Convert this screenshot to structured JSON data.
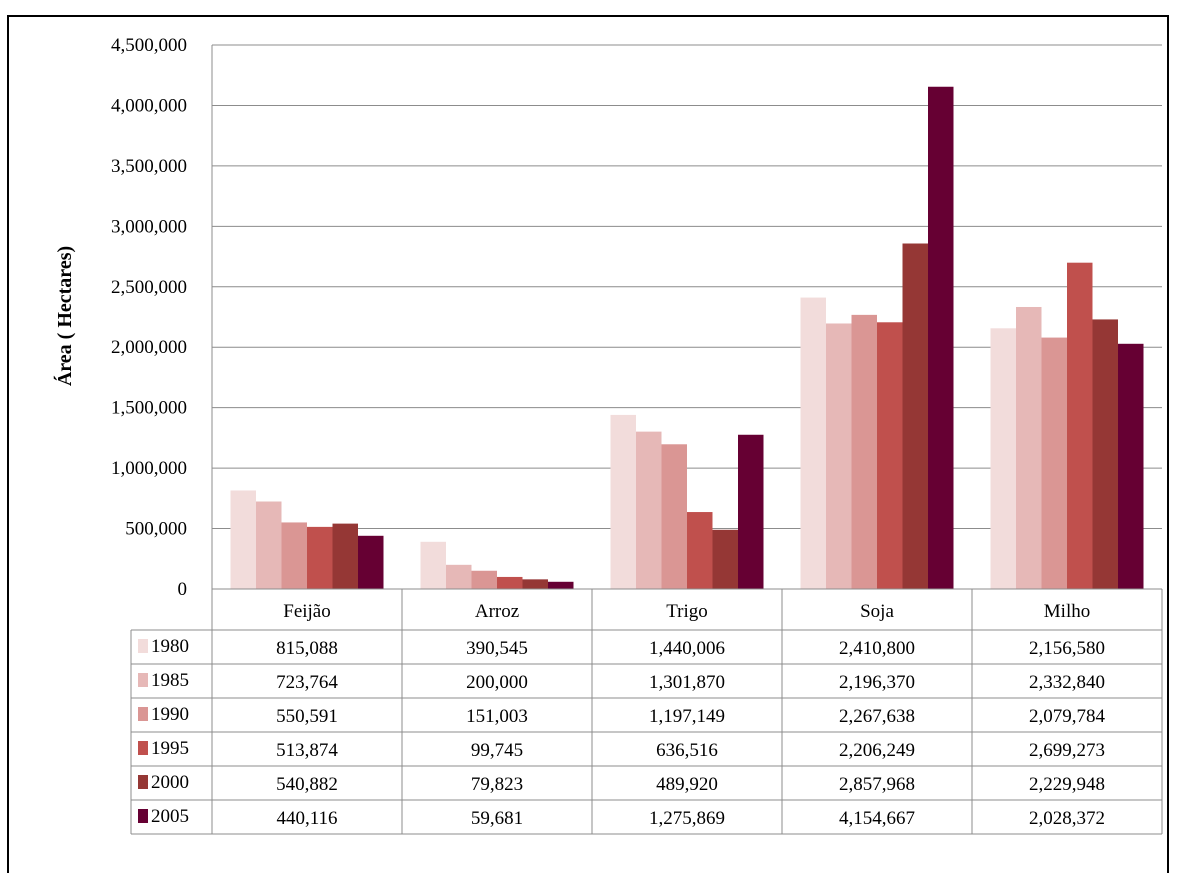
{
  "chart_data": {
    "type": "bar",
    "title": "",
    "xlabel": "",
    "ylabel": "Área ( Hectares)",
    "ylim": [
      0,
      4500000
    ],
    "y_ticks": [
      0,
      500000,
      1000000,
      1500000,
      2000000,
      2500000,
      3000000,
      3500000,
      4000000,
      4500000
    ],
    "y_tick_labels": [
      "0",
      "500,000",
      "1,000,000",
      "1,500,000",
      "2,000,000",
      "2,500,000",
      "3,000,000",
      "3,500,000",
      "4,000,000",
      "4,500,000"
    ],
    "grid": true,
    "legend": "data-table-left",
    "categories": [
      "Feijão",
      "Arroz",
      "Trigo",
      "Soja",
      "Milho"
    ],
    "series": [
      {
        "name": "1980",
        "color": "#f2dcdb",
        "values": [
          815088,
          390545,
          1440006,
          2410800,
          2156580
        ],
        "labels": [
          "815,088",
          "390,545",
          "1,440,006",
          "2,410,800",
          "2,156,580"
        ]
      },
      {
        "name": "1985",
        "color": "#e6b8b7",
        "values": [
          723764,
          200000,
          1301870,
          2196370,
          2332840
        ],
        "labels": [
          "723,764",
          "200,000",
          "1,301,870",
          "2,196,370",
          "2,332,840"
        ]
      },
      {
        "name": "1990",
        "color": "#da9694",
        "values": [
          550591,
          151003,
          1197149,
          2267638,
          2079784
        ],
        "labels": [
          "550,591",
          "151,003",
          "1,197,149",
          "2,267,638",
          "2,079,784"
        ]
      },
      {
        "name": "1995",
        "color": "#c0504d",
        "values": [
          513874,
          99745,
          636516,
          2206249,
          2699273
        ],
        "labels": [
          "513,874",
          "99,745",
          "636,516",
          "2,206,249",
          "2,699,273"
        ]
      },
      {
        "name": "2000",
        "color": "#953735",
        "values": [
          540882,
          79823,
          489920,
          2857968,
          2229948
        ],
        "labels": [
          "540,882",
          "79,823",
          "489,920",
          "2,857,968",
          "2,229,948"
        ]
      },
      {
        "name": "2005",
        "color": "#660033",
        "values": [
          440116,
          59681,
          1275869,
          4154667,
          2028372
        ],
        "labels": [
          "440,116",
          "59,681",
          "1,275,869",
          "4,154,667",
          "2,028,372"
        ]
      }
    ]
  }
}
